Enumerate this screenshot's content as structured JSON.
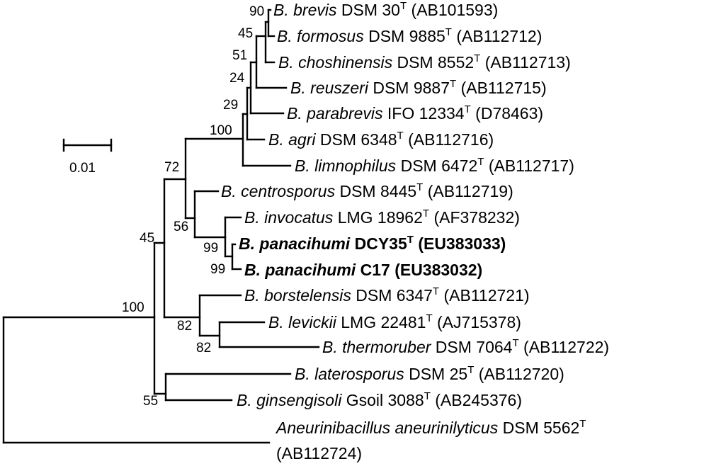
{
  "tree": {
    "scale_bar": {
      "label": "0.01"
    },
    "taxa": [
      {
        "id": "brevis",
        "genus": "B.",
        "species": "brevis",
        "strain": "DSM 30",
        "type_strain": "T",
        "accession": "(AB101593)",
        "bold": false
      },
      {
        "id": "formosus",
        "genus": "B.",
        "species": "formosus",
        "strain": "DSM 9885",
        "type_strain": "T",
        "accession": "(AB112712)",
        "bold": false
      },
      {
        "id": "choshinensis",
        "genus": "B.",
        "species": "choshinensis",
        "strain": "DSM 8552",
        "type_strain": "T",
        "accession": "(AB112713)",
        "bold": false
      },
      {
        "id": "reuszeri",
        "genus": "B.",
        "species": "reuszeri",
        "strain": "DSM 9887",
        "type_strain": "T",
        "accession": "(AB112715)",
        "bold": false
      },
      {
        "id": "parabrevis",
        "genus": "B.",
        "species": "parabrevis",
        "strain": "IFO 12334",
        "type_strain": "T",
        "accession": "(D78463)",
        "bold": false
      },
      {
        "id": "agri",
        "genus": "B.",
        "species": "agri",
        "strain": "DSM 6348",
        "type_strain": "T",
        "accession": "(AB112716)",
        "bold": false
      },
      {
        "id": "limnophilus",
        "genus": "B.",
        "species": "limnophilus",
        "strain": "DSM 6472",
        "type_strain": "T",
        "accession": "(AB112717)",
        "bold": false
      },
      {
        "id": "centrosporus",
        "genus": "B.",
        "species": "centrosporus",
        "strain": "DSM 8445",
        "type_strain": "T",
        "accession": "(AB112719)",
        "bold": false
      },
      {
        "id": "invocatus",
        "genus": "B.",
        "species": "invocatus",
        "strain": "LMG 18962",
        "type_strain": "T",
        "accession": "(AF378232)",
        "bold": false
      },
      {
        "id": "panacihumi-dcy35",
        "genus": "B.",
        "species": "panacihumi",
        "strain": "DCY35",
        "type_strain": "T",
        "accession": "(EU383033)",
        "bold": true
      },
      {
        "id": "panacihumi-c17",
        "genus": "B.",
        "species": "panacihumi",
        "strain": "C17",
        "type_strain": "",
        "accession": "(EU383032)",
        "bold": true
      },
      {
        "id": "borstelensis",
        "genus": "B.",
        "species": "borstelensis",
        "strain": "DSM 6347",
        "type_strain": "T",
        "accession": "(AB112721)",
        "bold": false
      },
      {
        "id": "levickii",
        "genus": "B.",
        "species": "levickii",
        "strain": "LMG 22481",
        "type_strain": "T",
        "accession": "(AJ715378)",
        "bold": false
      },
      {
        "id": "thermoruber",
        "genus": "B.",
        "species": "thermoruber",
        "strain": "DSM 7064",
        "type_strain": "T",
        "accession": "(AB112722)",
        "bold": false
      },
      {
        "id": "laterosporus",
        "genus": "B.",
        "species": "laterosporus",
        "strain": "DSM 25",
        "type_strain": "T",
        "accession": "(AB112720)",
        "bold": false
      },
      {
        "id": "ginsengisoli",
        "genus": "B.",
        "species": "ginsengisoli",
        "strain": "Gsoil 3088",
        "type_strain": "T",
        "accession": "(AB245376)",
        "bold": false
      },
      {
        "id": "aneurinilyticus",
        "genus": "Aneurinibacillus",
        "species": "aneurinilyticus",
        "strain": "DSM 5562",
        "type_strain": "T",
        "accession": "(AB112724)",
        "bold": false
      }
    ],
    "bootstrap_values": {
      "brevis_formosus": "90",
      "formosus_group": "45",
      "choshinensis_group": "51",
      "reuszeri_group": "24",
      "parabrevis_group": "29",
      "brevis_clade": "100",
      "brevis_centrosporus": "72",
      "centrosporus_group": "56",
      "panacihumi_invocatus": "99",
      "panacihumi_pair": "99",
      "upper_clade": "45",
      "brevibacillus": "100",
      "borstelensis_group": "82",
      "levickii_thermoruber": "82",
      "laterosporus_ginsengisoli": "55"
    }
  }
}
